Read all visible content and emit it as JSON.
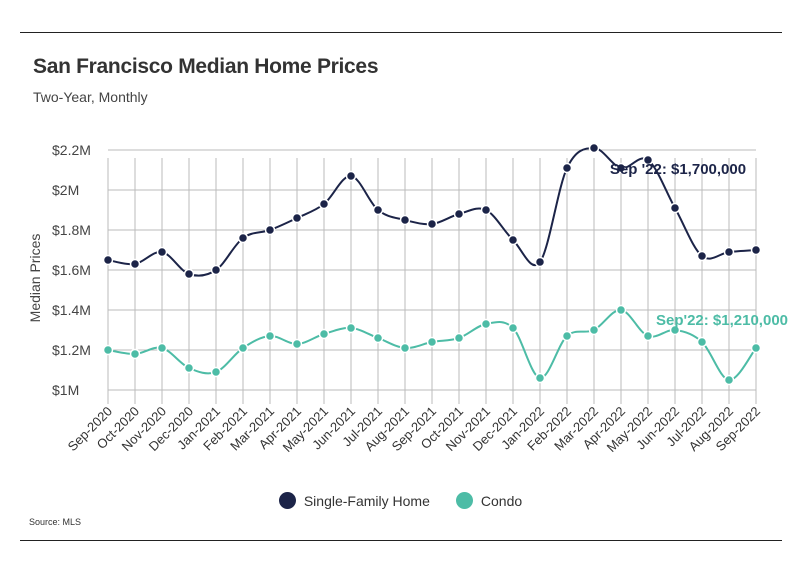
{
  "header": {
    "title": "San Francisco Median Home Prices",
    "subtitle": "Two-Year, Monthly"
  },
  "footer": {
    "source": "Source:  MLS"
  },
  "chart_data": {
    "type": "line",
    "title": "San Francisco Median Home Prices",
    "subtitle": "Two-Year, Monthly",
    "xlabel": "",
    "ylabel": "Median Prices",
    "ylim": [
      950000,
      2250000
    ],
    "y_ticks": [
      1000000,
      1200000,
      1400000,
      1600000,
      1800000,
      2000000,
      2200000
    ],
    "y_tick_labels": [
      "$1M",
      "$1.2M",
      "$1.4M",
      "$1.6M",
      "$1.8M",
      "$2M",
      "$2.2M"
    ],
    "grid": true,
    "legend_position": "bottom-center",
    "categories": [
      "Sep-2020",
      "Oct-2020",
      "Nov-2020",
      "Dec-2020",
      "Jan-2021",
      "Feb-2021",
      "Mar-2021",
      "Apr-2021",
      "May-2021",
      "Jun-2021",
      "Jul-2021",
      "Aug-2021",
      "Sep-2021",
      "Oct-2021",
      "Nov-2021",
      "Dec-2021",
      "Jan-2022",
      "Feb-2022",
      "Mar-2022",
      "Apr-2022",
      "May-2022",
      "Jun-2022",
      "Jul-2022",
      "Aug-2022",
      "Sep-2022"
    ],
    "series": [
      {
        "name": "Single-Family Home",
        "color": "#1c2448",
        "values": [
          1650000,
          1630000,
          1690000,
          1580000,
          1600000,
          1760000,
          1800000,
          1860000,
          1930000,
          2070000,
          1900000,
          1850000,
          1830000,
          1880000,
          1900000,
          1750000,
          1640000,
          2110000,
          2210000,
          2110000,
          2150000,
          1910000,
          1670000,
          1690000,
          1700000
        ],
        "annotation": "Sep '22: $1,700,000"
      },
      {
        "name": "Condo",
        "color": "#4dbca6",
        "values": [
          1200000,
          1180000,
          1210000,
          1110000,
          1090000,
          1210000,
          1270000,
          1230000,
          1280000,
          1310000,
          1260000,
          1210000,
          1240000,
          1260000,
          1330000,
          1310000,
          1060000,
          1270000,
          1300000,
          1400000,
          1270000,
          1300000,
          1240000,
          1050000,
          1210000
        ],
        "annotation": "Sep'22: $1,210,000"
      }
    ]
  }
}
